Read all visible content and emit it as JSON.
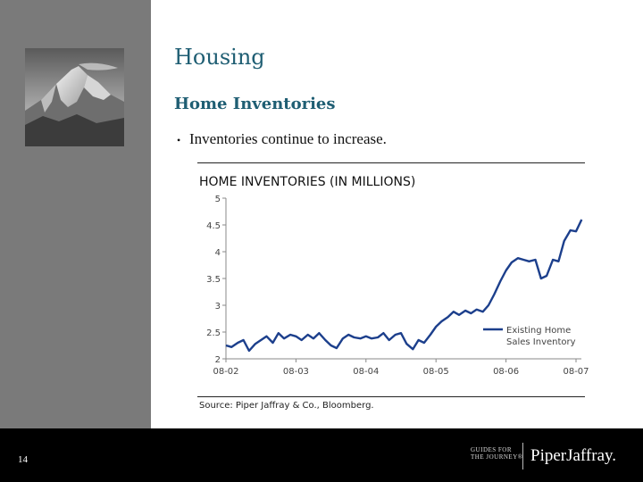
{
  "slide": {
    "title": "Housing",
    "subtitle": "Home Inventories",
    "bullets": [
      "Inventories continue to increase."
    ],
    "source": "Source: Piper Jaffray & Co., Bloomberg.",
    "page_number": "14",
    "footer": {
      "guides_line1": "GUIDES FOR",
      "guides_line2": "THE JOURNEY®",
      "brand": "PiperJaffray."
    }
  },
  "colors": {
    "sidebar": "#7a7a7a",
    "title_text": "#1f5e73",
    "series_line": "#1c3f8c",
    "footer": "#000000"
  },
  "chart_data": {
    "type": "line",
    "title": "HOME INVENTORIES (IN MILLIONS)",
    "xlabel": "",
    "ylabel": "",
    "x_ticks": [
      "08-02",
      "08-03",
      "08-04",
      "08-05",
      "08-06",
      "08-07"
    ],
    "y_ticks": [
      "2",
      "2.5",
      "3",
      "3.5",
      "4",
      "4.5",
      "5"
    ],
    "ylim": [
      2,
      5
    ],
    "grid": false,
    "legend_position": "bottom-right",
    "series": [
      {
        "name": "Existing Home Sales Inventory",
        "x": [
          2002.0,
          2002.08,
          2002.17,
          2002.25,
          2002.33,
          2002.42,
          2002.5,
          2002.58,
          2002.67,
          2002.75,
          2002.83,
          2002.92,
          2003.0,
          2003.08,
          2003.17,
          2003.25,
          2003.33,
          2003.42,
          2003.5,
          2003.58,
          2003.67,
          2003.75,
          2003.83,
          2003.92,
          2004.0,
          2004.08,
          2004.17,
          2004.25,
          2004.33,
          2004.42,
          2004.5,
          2004.58,
          2004.67,
          2004.75,
          2004.83,
          2004.92,
          2005.0,
          2005.08,
          2005.17,
          2005.25,
          2005.33,
          2005.42,
          2005.5,
          2005.58,
          2005.67,
          2005.75,
          2005.83,
          2005.92,
          2006.0,
          2006.08,
          2006.17,
          2006.25,
          2006.33,
          2006.42,
          2006.5,
          2006.58,
          2006.67,
          2006.75,
          2006.83,
          2006.92,
          2007.0,
          2007.08
        ],
        "values": [
          2.25,
          2.22,
          2.3,
          2.35,
          2.15,
          2.28,
          2.35,
          2.42,
          2.3,
          2.48,
          2.38,
          2.45,
          2.42,
          2.35,
          2.45,
          2.38,
          2.48,
          2.35,
          2.25,
          2.2,
          2.38,
          2.45,
          2.4,
          2.38,
          2.42,
          2.38,
          2.4,
          2.48,
          2.35,
          2.45,
          2.48,
          2.28,
          2.18,
          2.35,
          2.3,
          2.45,
          2.6,
          2.7,
          2.78,
          2.88,
          2.82,
          2.9,
          2.85,
          2.92,
          2.88,
          3.0,
          3.2,
          3.45,
          3.65,
          3.8,
          3.88,
          3.85,
          3.82,
          3.85,
          3.5,
          3.55,
          3.85,
          3.82,
          4.2,
          4.4,
          4.38,
          4.6
        ]
      }
    ]
  }
}
